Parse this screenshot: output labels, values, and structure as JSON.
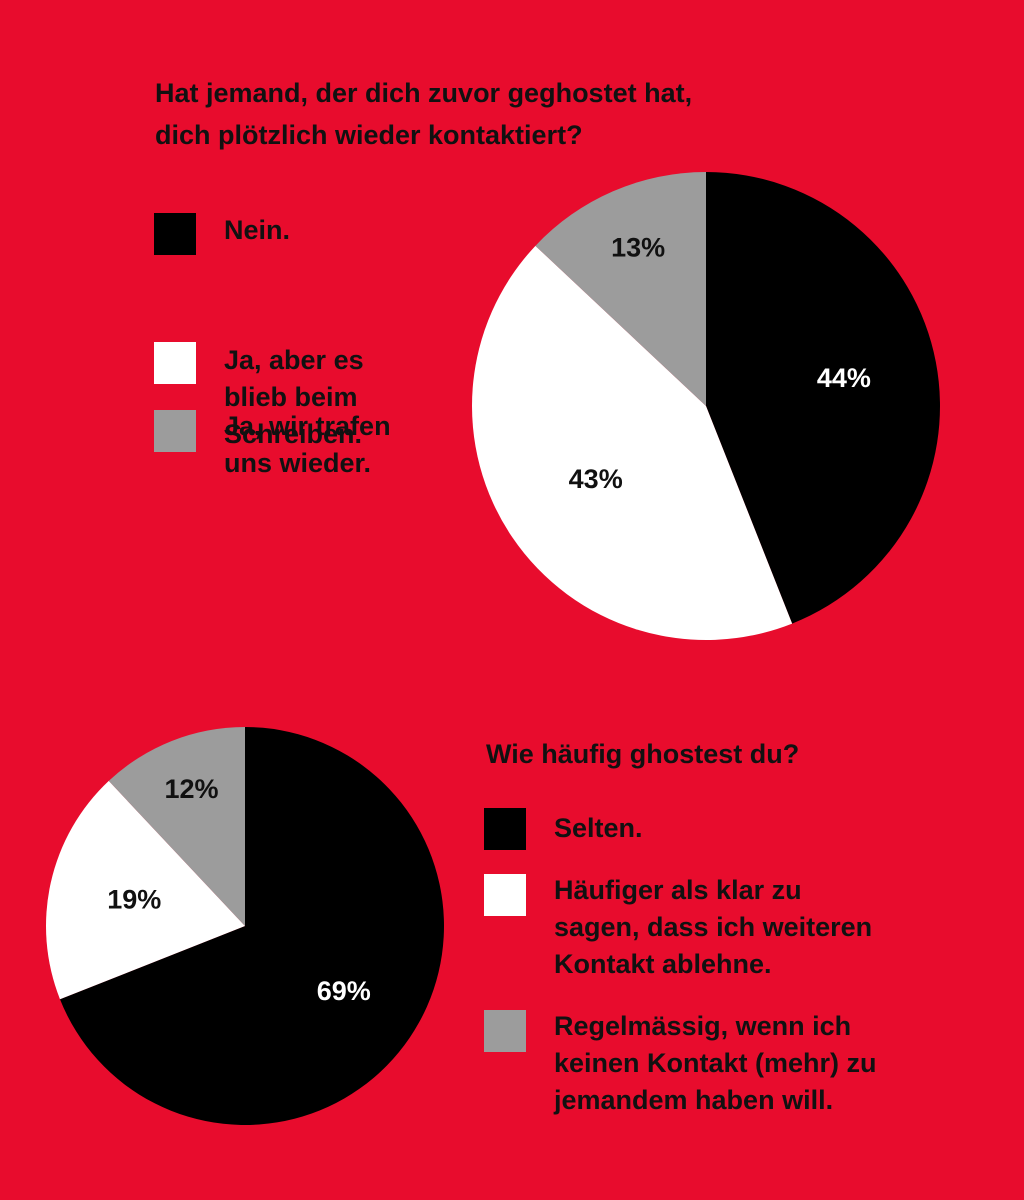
{
  "background_color": "#e80c2d",
  "chart_data": [
    {
      "type": "pie",
      "title": "Hat jemand, der dich zuvor geghostet hat,\ndich plötzlich wieder kontaktiert?",
      "start": "12 o'clock, clockwise",
      "slices": [
        {
          "label": "Nein.",
          "legend_text": "Nein.",
          "value": 44,
          "value_label": "44%",
          "color": "#000000",
          "text_color": "#ffffff"
        },
        {
          "label": "Ja, aber es blieb beim Schreiben.",
          "legend_text": "Ja, aber es\nblieb beim\nSchreiben.",
          "value": 43,
          "value_label": "43%",
          "color": "#ffffff",
          "text_color": "#111111"
        },
        {
          "label": "Ja, wir trafen uns wieder.",
          "legend_text": "Ja, wir trafen\nuns wieder.",
          "value": 13,
          "value_label": "13%",
          "color": "#9c9c9c",
          "text_color": "#111111"
        }
      ]
    },
    {
      "type": "pie",
      "title": "Wie häufig ghostest du?",
      "start": "12 o'clock, clockwise",
      "slices": [
        {
          "label": "Selten.",
          "legend_text": "Selten.",
          "value": 69,
          "value_label": "69%",
          "color": "#000000",
          "text_color": "#ffffff"
        },
        {
          "label": "Häufiger als klar zu sagen, dass ich weiteren Kontakt ablehne.",
          "legend_text": "Häufiger als klar zu\nsagen, dass ich weiteren\nKontakt ablehne.",
          "value": 19,
          "value_label": "19%",
          "color": "#ffffff",
          "text_color": "#111111"
        },
        {
          "label": "Regelmässig, wenn ich keinen Kontakt (mehr) zu jemandem haben will.",
          "legend_text": "Regelmässig, wenn ich\nkeinen Kontakt (mehr) zu\njemandem haben will.",
          "value": 12,
          "value_label": "12%",
          "color": "#9c9c9c",
          "text_color": "#111111"
        }
      ]
    }
  ]
}
